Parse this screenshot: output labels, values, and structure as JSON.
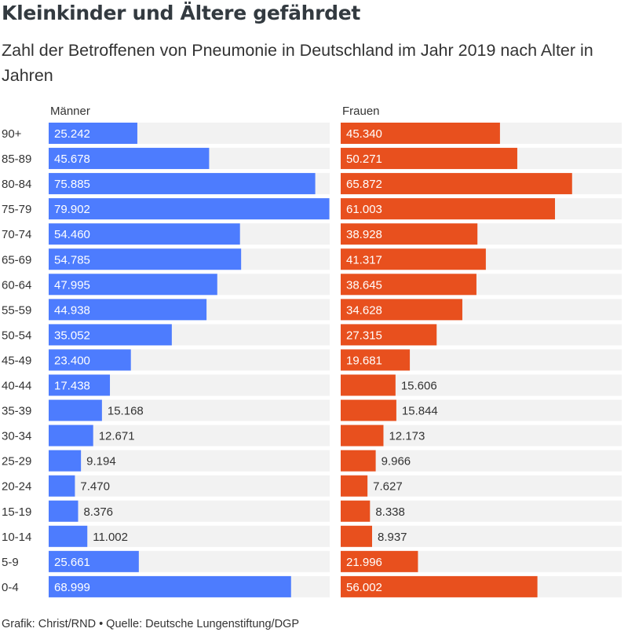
{
  "title": "Kleinkinder und Ältere gefährdet",
  "subtitle": "Zahl der Betroffenen von Pneumonie in Deutschland im Jahr 2019 nach Alter in Jahren",
  "footer": "Grafik: Christ/RND • Quelle: Deutsche Lungenstiftung/DGP",
  "colors": {
    "maenner": "#4d7cfe",
    "frauen": "#e8501e",
    "track": "#f2f2f2"
  },
  "chart_data": {
    "type": "bar",
    "orientation": "horizontal",
    "categories": [
      "90+",
      "85-89",
      "80-84",
      "75-79",
      "70-74",
      "65-69",
      "60-64",
      "55-59",
      "50-54",
      "45-49",
      "40-44",
      "35-39",
      "30-34",
      "25-29",
      "20-24",
      "15-19",
      "10-14",
      "5-9",
      "0-4"
    ],
    "series": [
      {
        "name": "Männer",
        "values": [
          25242,
          45678,
          75885,
          79902,
          54460,
          54785,
          47995,
          44938,
          35052,
          23400,
          17438,
          15168,
          12671,
          9194,
          7470,
          8376,
          11002,
          25661,
          68999
        ],
        "labels": [
          "25.242",
          "45.678",
          "75.885",
          "79.902",
          "54.460",
          "54.785",
          "47.995",
          "44.938",
          "35.052",
          "23.400",
          "17.438",
          "15.168",
          "12.671",
          "9.194",
          "7.470",
          "8.376",
          "11.002",
          "25.661",
          "68.999"
        ]
      },
      {
        "name": "Frauen",
        "values": [
          45340,
          50271,
          65872,
          61003,
          38928,
          41317,
          38645,
          34628,
          27315,
          19681,
          15606,
          15844,
          12173,
          9966,
          7627,
          8338,
          8937,
          21996,
          56002
        ],
        "labels": [
          "45.340",
          "50.271",
          "65.872",
          "61.003",
          "38.928",
          "41.317",
          "38.645",
          "34.628",
          "27.315",
          "19.681",
          "15.606",
          "15.844",
          "12.173",
          "9.966",
          "7.627",
          "8.338",
          "8.937",
          "21.996",
          "56.002"
        ]
      }
    ],
    "xlim": [
      0,
      80000
    ]
  }
}
